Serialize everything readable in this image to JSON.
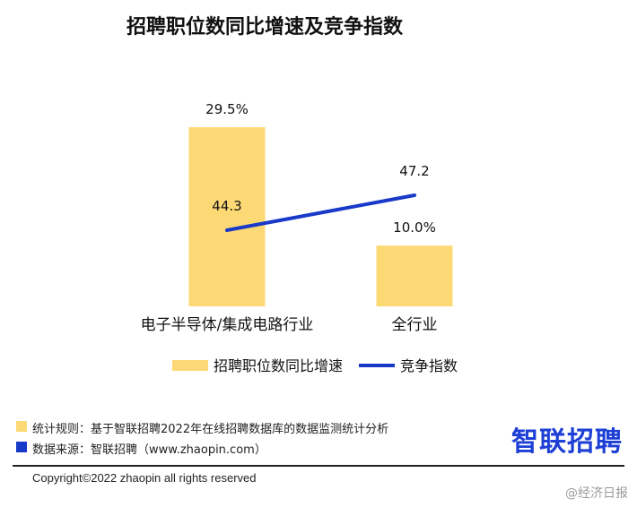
{
  "chart_data": {
    "type": "bar+line",
    "title": "招聘职位数同比增速及竞争指数",
    "categories": [
      "电子半导体/集成电路行业",
      "全行业"
    ],
    "series": [
      {
        "name": "招聘职位数同比增速",
        "kind": "bar",
        "values": [
          29.5,
          10.0
        ],
        "labels": [
          "29.5%",
          "10.0%"
        ],
        "color": "#FDD976"
      },
      {
        "name": "竞争指数",
        "kind": "line",
        "values": [
          44.3,
          47.2
        ],
        "labels": [
          "44.3",
          "47.2"
        ],
        "color": "#1939C8"
      }
    ]
  },
  "footer": {
    "note1": "统计规则：基于智联招聘2022年在线招聘数据库的数据监测统计分析",
    "note2": "数据来源：智联招聘（www.zhaopin.com）",
    "note1_color": "#FDD976",
    "note2_color": "#1939C8",
    "brand": "智联招聘",
    "copyright": "Copyright©2022 zhaopin all rights reserved",
    "watermark": "@经济日报"
  }
}
